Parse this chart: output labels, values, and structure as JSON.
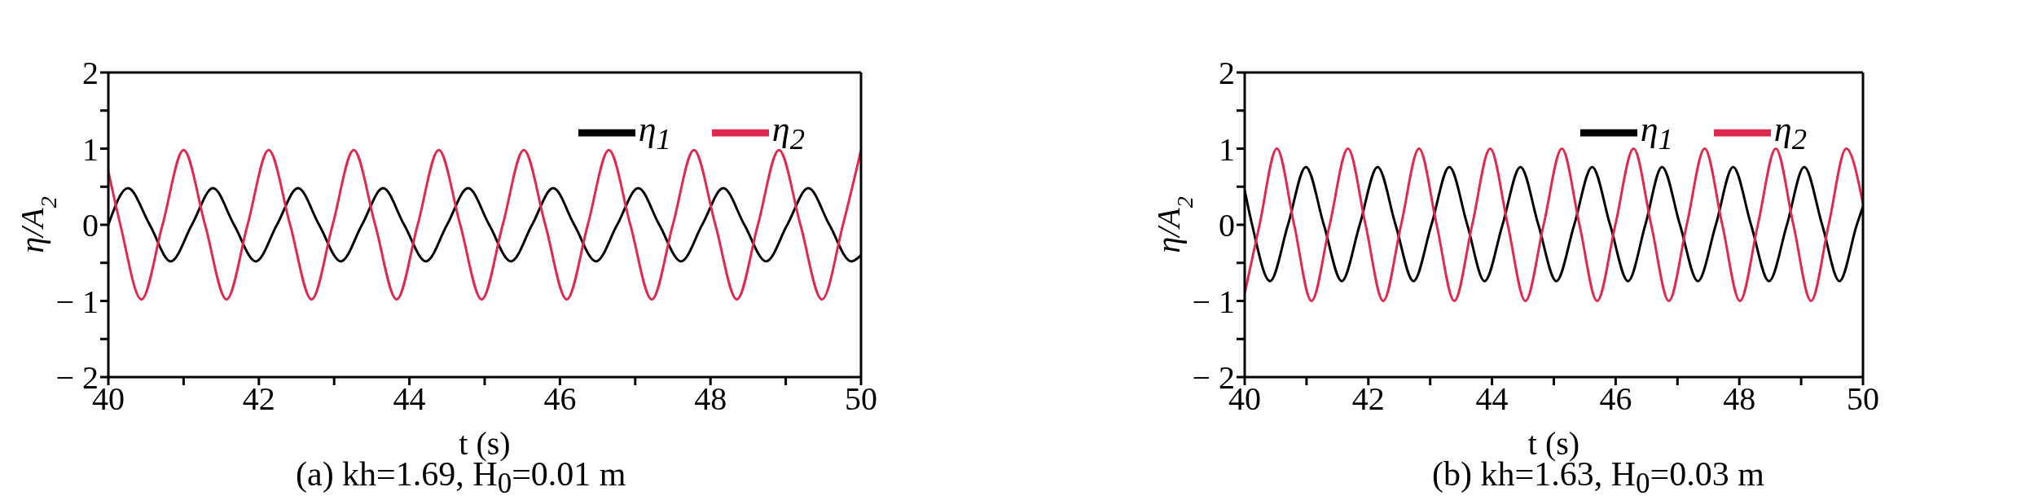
{
  "chart_data": [
    {
      "type": "line",
      "title": "(a) kh=1.69, H$_{0}$=0.01 m",
      "xlabel": "t (s)",
      "ylabel": "η/A$_{2}$",
      "xlim": [
        40,
        50
      ],
      "ylim": [
        -2,
        2
      ],
      "xticks": [
        40,
        {
          "value": 41,
          "label": null
        },
        42,
        {
          "value": 43,
          "label": null
        },
        44,
        {
          "value": 45,
          "label": null
        },
        46,
        {
          "value": 47,
          "label": null
        },
        48,
        {
          "value": 49,
          "label": null
        },
        50
      ],
      "yticks": [
        {
          "value": -2,
          "label": "− 2"
        },
        {
          "value": -1.5,
          "label": null
        },
        {
          "value": -1,
          "label": "− 1"
        },
        {
          "value": -0.5,
          "label": null
        },
        0,
        {
          "value": 0.5,
          "label": null
        },
        1,
        {
          "value": 1.5,
          "label": null
        },
        2
      ],
      "legend": "top right",
      "marker": "none",
      "line_style": "solid",
      "series": [
        {
          "name": "η$_{1}$",
          "color": "#000000",
          "x": [
            40,
            40.26,
            40.55,
            40.83,
            41.11,
            41.39,
            41.67,
            41.96,
            42.24,
            42.52,
            42.8,
            43.09,
            43.37,
            43.65,
            43.93,
            44.22,
            44.5,
            44.78,
            45.06,
            45.35,
            45.63,
            45.91,
            46.19,
            46.48,
            46.76,
            47.04,
            47.32,
            47.61,
            47.89,
            48.17,
            48.45,
            48.74,
            49.02,
            49.3,
            49.58,
            49.87,
            50
          ],
          "values": [
            0,
            0.48,
            0,
            -0.48,
            0,
            0.48,
            0,
            -0.48,
            0,
            0.48,
            0,
            -0.48,
            0,
            0.48,
            0,
            -0.48,
            0,
            0.48,
            0,
            -0.48,
            0,
            0.48,
            0,
            -0.48,
            0,
            0.48,
            0,
            -0.48,
            0,
            0.48,
            0,
            -0.48,
            0,
            0.48,
            0,
            -0.48,
            -0.4
          ]
        },
        {
          "name": "η$_{2}$",
          "color": "#e0294f",
          "x": [
            40,
            40.16,
            40.44,
            40.72,
            41.0,
            41.285,
            41.57,
            41.85,
            42.13,
            42.415,
            42.7,
            42.98,
            43.26,
            43.545,
            43.83,
            44.11,
            44.39,
            44.675,
            44.96,
            45.24,
            45.52,
            45.805,
            46.09,
            46.37,
            46.65,
            46.935,
            47.22,
            47.5,
            47.78,
            48.065,
            48.35,
            48.63,
            48.91,
            49.195,
            49.48,
            49.76,
            50
          ],
          "values": [
            0.7,
            0,
            -0.98,
            0,
            0.98,
            0,
            -0.98,
            0,
            0.98,
            0,
            -0.98,
            0,
            0.98,
            0,
            -0.98,
            0,
            0.98,
            0,
            -0.98,
            0,
            0.98,
            0,
            -0.98,
            0,
            0.98,
            0,
            -0.98,
            0,
            0.98,
            0,
            -0.98,
            0,
            0.98,
            0,
            -0.98,
            0,
            0.98
          ]
        }
      ]
    },
    {
      "type": "line",
      "title": "(b) kh=1.63, H$_{0}$=0.03 m",
      "xlabel": "t (s)",
      "ylabel": "η/A$_{2}$",
      "xlim": [
        40,
        50
      ],
      "ylim": [
        -2,
        2
      ],
      "xticks": [
        40,
        {
          "value": 41,
          "label": null
        },
        42,
        {
          "value": 43,
          "label": null
        },
        44,
        {
          "value": 45,
          "label": null
        },
        46,
        {
          "value": 47,
          "label": null
        },
        48,
        {
          "value": 49,
          "label": null
        },
        50
      ],
      "yticks": [
        {
          "value": -2,
          "label": "− 2"
        },
        {
          "value": -1.5,
          "label": null
        },
        {
          "value": -1,
          "label": "− 1"
        },
        {
          "value": -0.5,
          "label": null
        },
        0,
        {
          "value": 0.5,
          "label": null
        },
        1,
        {
          "value": 1.5,
          "label": null
        },
        2
      ],
      "legend": "top right",
      "marker": "none",
      "line_style": "solid",
      "series": [
        {
          "name": "η$_{1}$",
          "color": "#000000",
          "x": [
            40,
            40.12,
            40.41,
            40.7,
            40.99,
            41.28,
            41.57,
            41.86,
            42.15,
            42.44,
            42.73,
            43.02,
            43.31,
            43.6,
            43.88,
            44.17,
            44.46,
            44.75,
            45.04,
            45.33,
            45.62,
            45.91,
            46.2,
            46.48,
            46.75,
            47.04,
            47.33,
            47.62,
            47.9,
            48.19,
            48.48,
            48.77,
            49.05,
            49.34,
            49.62,
            49.9,
            50
          ],
          "values": [
            0.45,
            0,
            -0.74,
            0,
            0.76,
            0,
            -0.74,
            0,
            0.76,
            0,
            -0.74,
            0,
            0.76,
            0,
            -0.74,
            0,
            0.76,
            0,
            -0.74,
            0,
            0.76,
            0,
            -0.74,
            0,
            0.76,
            0,
            -0.74,
            0,
            0.76,
            0,
            -0.74,
            0,
            0.76,
            0,
            -0.74,
            0,
            0.24
          ]
        },
        {
          "name": "η$_{2}$",
          "color": "#e0294f",
          "x": [
            40,
            40.24,
            40.52,
            40.8,
            41.08,
            41.375,
            41.67,
            41.955,
            42.24,
            42.53,
            42.82,
            43.105,
            43.39,
            43.68,
            43.97,
            44.255,
            44.54,
            44.835,
            45.13,
            45.415,
            45.7,
            45.995,
            46.29,
            46.575,
            46.86,
            47.15,
            47.44,
            47.725,
            48.01,
            48.3,
            48.59,
            48.875,
            49.16,
            49.445,
            49.73,
            50
          ],
          "values": [
            -0.9,
            0,
            1,
            0,
            -1,
            0,
            1,
            0,
            -1,
            0,
            1,
            0,
            -1,
            0,
            1,
            0,
            -1,
            0,
            1,
            0,
            -1,
            0,
            1,
            0,
            -1,
            0,
            1,
            0,
            -1,
            0,
            1,
            0,
            -1,
            0,
            1,
            0.28
          ]
        }
      ]
    }
  ]
}
